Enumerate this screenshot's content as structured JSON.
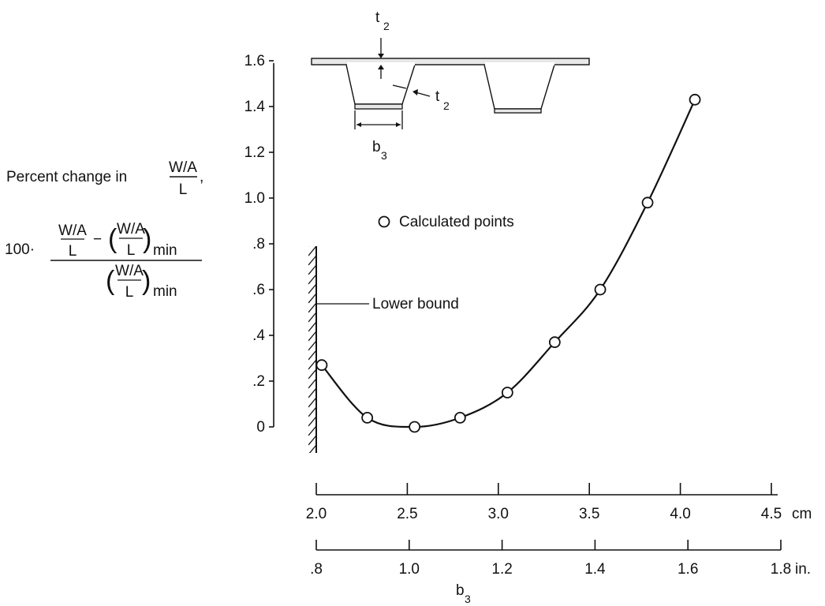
{
  "chart_data": {
    "type": "scatter",
    "ylabel": {
      "line1": "Percent change in",
      "frac_top": "W/A",
      "frac_bottom": "L",
      "prefix": "100·",
      "num_a": "W/A",
      "num_b": "L",
      "minus": "−",
      "den_a": "W/A",
      "den_b": "L",
      "min": "min"
    },
    "xlabel": "b",
    "xlabel_sub": "3",
    "ylim": [
      0,
      1.6
    ],
    "yticks": [
      {
        "v": 0,
        "label": "0"
      },
      {
        "v": 0.2,
        "label": ".2"
      },
      {
        "v": 0.4,
        "label": ".4"
      },
      {
        "v": 0.6,
        "label": ".6"
      },
      {
        "v": 0.8,
        "label": ".8"
      },
      {
        "v": 1.0,
        "label": "1.0"
      },
      {
        "v": 1.2,
        "label": "1.2"
      },
      {
        "v": 1.4,
        "label": "1.4"
      },
      {
        "v": 1.6,
        "label": "1.6"
      }
    ],
    "x_cm_ticks": [
      {
        "v": 2.0,
        "label": "2.0"
      },
      {
        "v": 2.5,
        "label": "2.5"
      },
      {
        "v": 3.0,
        "label": "3.0"
      },
      {
        "v": 3.5,
        "label": "3.5"
      },
      {
        "v": 4.0,
        "label": "4.0"
      },
      {
        "v": 4.5,
        "label": "4.5"
      }
    ],
    "x_cm_unit": "cm",
    "x_in_ticks": [
      {
        "v": 0.8,
        "label": ".8"
      },
      {
        "v": 1.0,
        "label": "1.0"
      },
      {
        "v": 1.2,
        "label": "1.2"
      },
      {
        "v": 1.4,
        "label": "1.4"
      },
      {
        "v": 1.6,
        "label": "1.6"
      },
      {
        "v": 1.8,
        "label": "1.8"
      }
    ],
    "x_in_unit": "in.",
    "series": [
      {
        "name": "Calculated points",
        "x_cm": [
          2.03,
          2.28,
          2.54,
          2.79,
          3.05,
          3.31,
          3.56,
          3.82,
          4.08
        ],
        "y": [
          0.27,
          0.04,
          0.0,
          0.04,
          0.15,
          0.37,
          0.6,
          0.98,
          1.43
        ]
      }
    ],
    "annotations": {
      "lower_bound": "Lower bound",
      "t_label": "t",
      "t_sub": "2",
      "b_label": "b",
      "b_sub": "3"
    }
  }
}
